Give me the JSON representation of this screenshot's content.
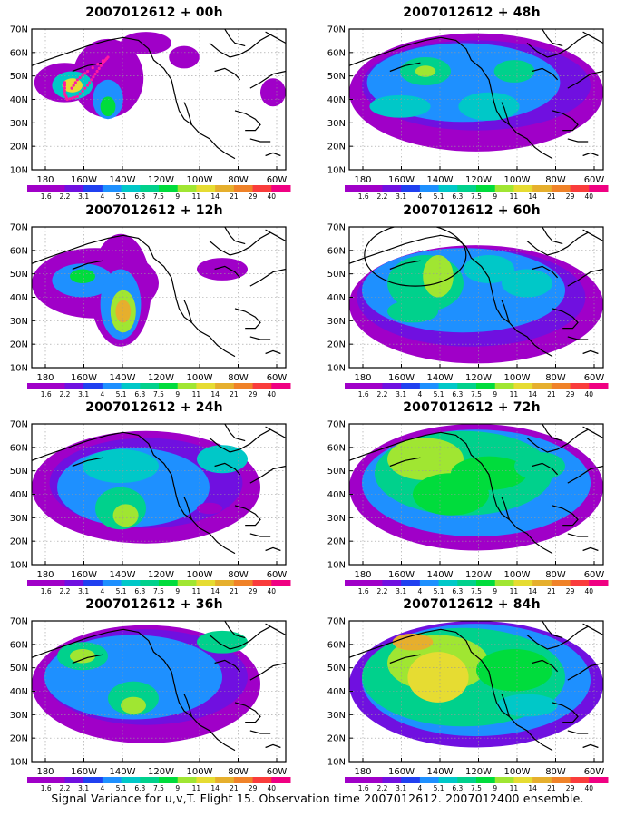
{
  "caption": "Signal Variance for u,v,T. Flight 15. Observation time 2007012612. 2007012400 ensemble.",
  "colorbar": {
    "labels": [
      "1.6",
      "2.2",
      "3.1",
      "4",
      "5.1",
      "6.3",
      "7.5",
      "9",
      "11",
      "14",
      "21",
      "29",
      "40"
    ],
    "colors": [
      "#a000c8",
      "#7010e0",
      "#2040f0",
      "#1e90ff",
      "#00c8c8",
      "#00d18c",
      "#00dc3c",
      "#a0e632",
      "#e6dc32",
      "#e6af2d",
      "#f08228",
      "#fa3c3c",
      "#f00082"
    ]
  },
  "axes": {
    "lat_labels": [
      "70N",
      "60N",
      "50N",
      "40N",
      "30N",
      "20N",
      "10N"
    ],
    "lon_labels": [
      "180",
      "160W",
      "140W",
      "120W",
      "100W",
      "80W",
      "60W"
    ]
  },
  "panels": [
    {
      "title": "2007012612 + 00h"
    },
    {
      "title": "2007012612 + 48h"
    },
    {
      "title": "2007012612 + 12h"
    },
    {
      "title": "2007012612 + 60h"
    },
    {
      "title": "2007012612 + 24h"
    },
    {
      "title": "2007012612 + 72h"
    },
    {
      "title": "2007012612 + 36h"
    },
    {
      "title": "2007012612 + 84h"
    }
  ]
}
